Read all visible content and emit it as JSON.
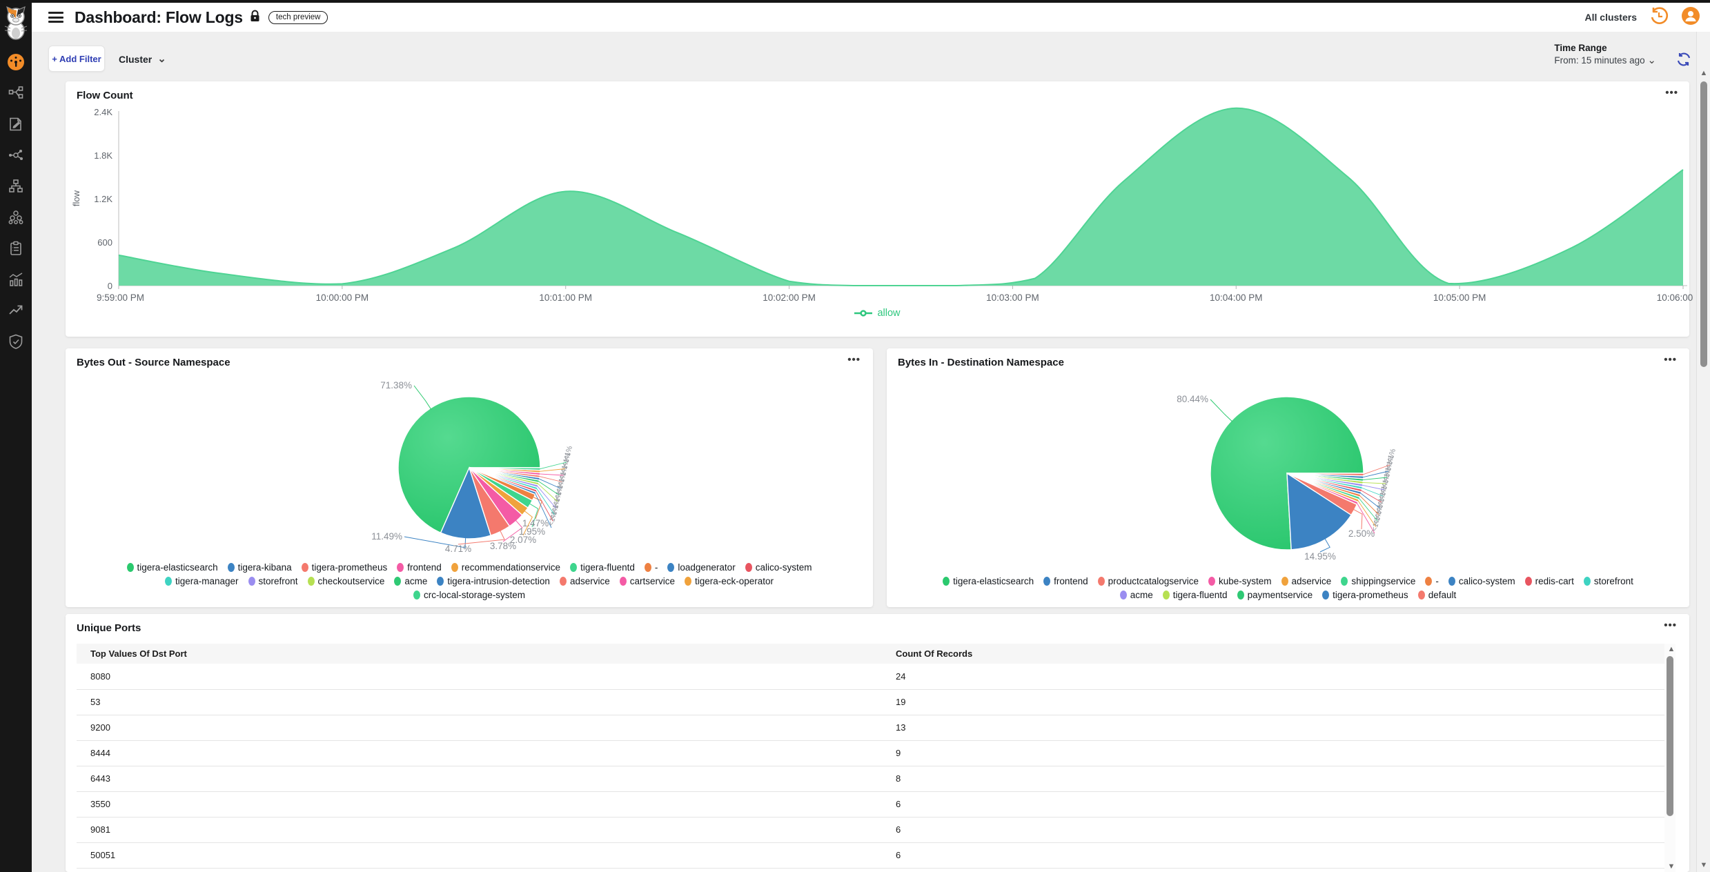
{
  "header": {
    "title": "Dashboard: Flow Logs",
    "badge": "tech preview",
    "all_clusters": "All clusters",
    "menu_dots": "•••"
  },
  "filters": {
    "add_filter_label": "+ Add Filter",
    "cluster_label": "Cluster"
  },
  "time_range": {
    "label": "Time Range",
    "value": "From: 15 minutes ago"
  },
  "sidebar": {
    "icons": [
      "calico-cat-logo",
      "dashboard-gauge",
      "service-graph",
      "policy-edit",
      "flow-visualizations",
      "network-sets",
      "clusters",
      "compliance-reports",
      "metrics",
      "trends",
      "threat-defense"
    ]
  },
  "colors": {
    "accent_orange": "#f28c28",
    "accent_blue_refresh": "#3a4ab8",
    "area_fill": "#68d9a2",
    "area_line": "#4fd494",
    "legend_green": "#2ec77e",
    "axis_text": "#5f646b",
    "pct_text": "#8c9097"
  },
  "chart_data": [
    {
      "type": "area",
      "title": "Flow Count",
      "ylabel": "flow",
      "xlabel": "",
      "legend": [
        {
          "name": "allow",
          "color": "#2ec77e"
        }
      ],
      "ylim": [
        0,
        2400
      ],
      "yticks": [
        "0",
        "600",
        "1.2K",
        "1.8K",
        "2.4K"
      ],
      "x_tick_labels": [
        "9:59:00 PM",
        "10:00:00 PM",
        "10:01:00 PM",
        "10:02:00 PM",
        "10:03:00 PM",
        "10:04:00 PM",
        "10:05:00 PM",
        "10:06:00 PM"
      ],
      "series": [
        {
          "name": "allow",
          "points": [
            [
              0,
              420
            ],
            [
              0.45,
              170
            ],
            [
              1,
              25
            ],
            [
              1.5,
              520
            ],
            [
              2,
              1300
            ],
            [
              2.5,
              730
            ],
            [
              3,
              60
            ],
            [
              3.3,
              0
            ],
            [
              3.75,
              0
            ],
            [
              4.1,
              100
            ],
            [
              4.5,
              1450
            ],
            [
              5,
              2450
            ],
            [
              5.5,
              1500
            ],
            [
              5.95,
              30
            ],
            [
              6.5,
              520
            ],
            [
              7,
              1600
            ]
          ]
        }
      ]
    },
    {
      "type": "pie",
      "title": "Bytes Out - Source Namespace",
      "slices": [
        {
          "label": "tigera-elasticsearch",
          "pct": 71.38,
          "display": "71.38%",
          "color": "#2bc96e"
        },
        {
          "label": "tigera-kibana",
          "pct": 11.49,
          "display": "11.49%",
          "color": "#3c83c3"
        },
        {
          "label": "tigera-prometheus",
          "pct": 4.71,
          "display": "4.71%",
          "color": "#f4796d"
        },
        {
          "label": "frontend",
          "pct": 3.78,
          "display": "3.78%",
          "color": "#f45ba5"
        },
        {
          "label": "recommendationservice",
          "pct": 2.07,
          "display": "2.07%",
          "color": "#f0a23c"
        },
        {
          "label": "tigera-fluentd",
          "pct": 1.95,
          "display": "1.95%",
          "color": "#3ed58d"
        },
        {
          "label": "-",
          "pct": 1.47,
          "display": "1.47%",
          "color": "#ee8142"
        },
        {
          "label": "loadgenerator",
          "pct": 0.29,
          "display": "<1%",
          "color": "#3c83c3"
        },
        {
          "label": "calico-system",
          "pct": 0.29,
          "display": "<1%",
          "color": "#e85560"
        },
        {
          "label": "tigera-manager",
          "pct": 0.29,
          "display": "<1%",
          "color": "#3ed3c2"
        },
        {
          "label": "storefront",
          "pct": 0.29,
          "display": "<1%",
          "color": "#9a8df0"
        },
        {
          "label": "checkoutservice",
          "pct": 0.29,
          "display": "<1%",
          "color": "#b6e052"
        },
        {
          "label": "acme",
          "pct": 0.29,
          "display": "<1%",
          "color": "#2fc974"
        },
        {
          "label": "tigera-intrusion-detection",
          "pct": 0.29,
          "display": "<1%",
          "color": "#3c83c3"
        },
        {
          "label": "adservice",
          "pct": 0.29,
          "display": "<1%",
          "color": "#f4796d"
        },
        {
          "label": "cartservice",
          "pct": 0.29,
          "display": "<1%",
          "color": "#f45ba5"
        },
        {
          "label": "tigera-eck-operator",
          "pct": 0.29,
          "display": "<1%",
          "color": "#f0a23c"
        },
        {
          "label": "crc-local-storage-system",
          "pct": 0.28,
          "display": "<1%",
          "color": "#3ed58d"
        }
      ]
    },
    {
      "type": "pie",
      "title": "Bytes In - Destination Namespace",
      "slices": [
        {
          "label": "tigera-elasticsearch",
          "pct": 80.44,
          "display": "80.44%",
          "color": "#2bc96e"
        },
        {
          "label": "frontend",
          "pct": 14.95,
          "display": "14.95%",
          "color": "#3c83c3"
        },
        {
          "label": "productcatalogservice",
          "pct": 2.5,
          "display": "2.50%",
          "color": "#f4796d"
        },
        {
          "label": "kube-system",
          "pct": 0.18,
          "display": "<1%",
          "color": "#f45ba5"
        },
        {
          "label": "adservice",
          "pct": 0.18,
          "display": "<1%",
          "color": "#f0a23c"
        },
        {
          "label": "shippingservice",
          "pct": 0.18,
          "display": "<1%",
          "color": "#3ed58d"
        },
        {
          "label": "-",
          "pct": 0.18,
          "display": "<1%",
          "color": "#ee8142"
        },
        {
          "label": "calico-system",
          "pct": 0.18,
          "display": "<1%",
          "color": "#3c83c3"
        },
        {
          "label": "redis-cart",
          "pct": 0.18,
          "display": "<1%",
          "color": "#e85560"
        },
        {
          "label": "storefront",
          "pct": 0.18,
          "display": "<1%",
          "color": "#3ed3c2"
        },
        {
          "label": "acme",
          "pct": 0.18,
          "display": "<1%",
          "color": "#9a8df0"
        },
        {
          "label": "tigera-fluentd",
          "pct": 0.18,
          "display": "<1%",
          "color": "#b6e052"
        },
        {
          "label": "paymentservice",
          "pct": 0.18,
          "display": "<1%",
          "color": "#2fc974"
        },
        {
          "label": "tigera-prometheus",
          "pct": 0.18,
          "display": "<1%",
          "color": "#3c83c3"
        },
        {
          "label": "default",
          "pct": 0.15,
          "display": "<1%",
          "color": "#f4796d"
        }
      ]
    },
    {
      "type": "table",
      "title": "Unique Ports",
      "columns": [
        "Top Values Of Dst Port",
        "Count Of Records"
      ],
      "rows": [
        [
          "8080",
          "24"
        ],
        [
          "53",
          "19"
        ],
        [
          "9200",
          "13"
        ],
        [
          "8444",
          "9"
        ],
        [
          "6443",
          "8"
        ],
        [
          "3550",
          "6"
        ],
        [
          "9081",
          "6"
        ],
        [
          "50051",
          "6"
        ]
      ]
    }
  ]
}
